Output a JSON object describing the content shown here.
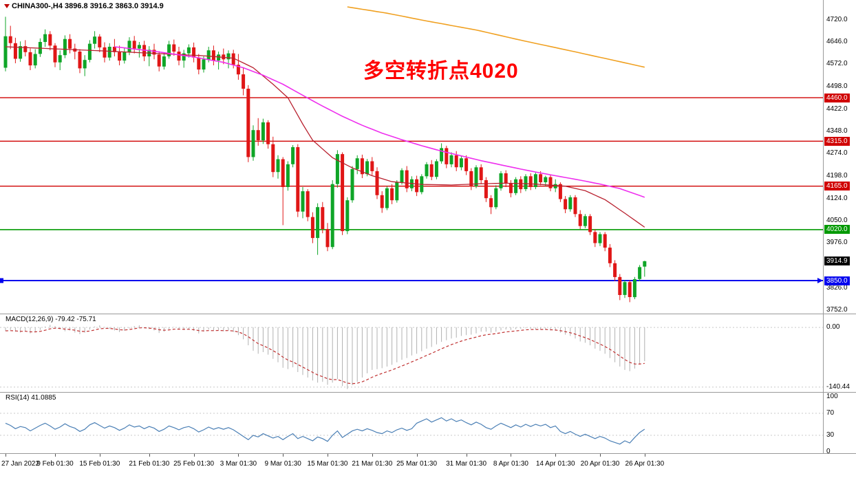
{
  "header": {
    "symbol": "CHINA300-,H4",
    "ohlc": "3896.8 3916.2 3863.0 3914.9"
  },
  "annotation": {
    "text": "多空转折点4020"
  },
  "colors": {
    "up": "#0fa527",
    "down": "#e01616",
    "ma_fast": "#b8202e",
    "ma_slow": "#ee2fee",
    "ma_long": "#f0a020",
    "macd_hist": "#b0b0b0",
    "macd_signal": "#c03030",
    "rsi_line": "#4a7fb5",
    "annotation": "#ff0000",
    "badge_current_bg": "#000000"
  },
  "chart_data": {
    "type": "candlestick",
    "symbol": "CHINA300-",
    "timeframe": "H4",
    "last_bar": {
      "open": 3896.8,
      "high": 3916.2,
      "low": 3863.0,
      "close": 3914.9
    },
    "current_price": 3914.9,
    "current_price_label": "3914.9",
    "ylim": [
      3740,
      4786
    ],
    "y_ticks": [
      {
        "v": 4720,
        "t": "4720.0"
      },
      {
        "v": 4646,
        "t": "4646.0"
      },
      {
        "v": 4572,
        "t": "4572.0"
      },
      {
        "v": 4498,
        "t": "4498.0"
      },
      {
        "v": 4422,
        "t": "4422.0"
      },
      {
        "v": 4348,
        "t": "4348.0"
      },
      {
        "v": 4274,
        "t": "4274.0"
      },
      {
        "v": 4198,
        "t": "4198.0"
      },
      {
        "v": 4124,
        "t": "4124.0"
      },
      {
        "v": 4050,
        "t": "4050.0"
      },
      {
        "v": 3976,
        "t": "3976.0"
      },
      {
        "v": 3826,
        "t": "3826.0"
      },
      {
        "v": 3752,
        "t": "3752.0"
      }
    ],
    "hlines": [
      {
        "value": 4460.0,
        "label": "4460.0",
        "color": "#d00000",
        "width": 1.4
      },
      {
        "value": 4315.0,
        "label": "4315.0",
        "color": "#d00000",
        "width": 1.4
      },
      {
        "value": 4165.0,
        "label": "4165.0",
        "color": "#d00000",
        "width": 1.4
      },
      {
        "value": 4020.0,
        "label": "4020.0",
        "color": "#009900",
        "width": 1.6
      },
      {
        "value": 3850.0,
        "label": "3850.0",
        "color": "#0000ee",
        "width": 2
      }
    ],
    "x_labels": [
      {
        "index": 0,
        "text": "27 Jan 2022"
      },
      {
        "index": 10,
        "text": "9 Feb 01:30"
      },
      {
        "index": 19,
        "text": "15 Feb 01:30"
      },
      {
        "index": 29,
        "text": "21 Feb 01:30"
      },
      {
        "index": 38,
        "text": "25 Feb 01:30"
      },
      {
        "index": 47,
        "text": "3 Mar 01:30"
      },
      {
        "index": 56,
        "text": "9 Mar 01:30"
      },
      {
        "index": 65,
        "text": "15 Mar 01:30"
      },
      {
        "index": 74,
        "text": "21 Mar 01:30"
      },
      {
        "index": 83,
        "text": "25 Mar 01:30"
      },
      {
        "index": 93,
        "text": "31 Mar 01:30"
      },
      {
        "index": 102,
        "text": "8 Apr 01:30"
      },
      {
        "index": 111,
        "text": "14 Apr 01:30"
      },
      {
        "index": 120,
        "text": "20 Apr 01:30"
      },
      {
        "index": 129,
        "text": "26 Apr 01:30"
      }
    ],
    "candles": [
      [
        4560,
        4730,
        4548,
        4665
      ],
      [
        4665,
        4700,
        4622,
        4642
      ],
      [
        4642,
        4660,
        4575,
        4590
      ],
      [
        4590,
        4648,
        4580,
        4632
      ],
      [
        4632,
        4652,
        4598,
        4612
      ],
      [
        4612,
        4625,
        4552,
        4568
      ],
      [
        4568,
        4622,
        4558,
        4606
      ],
      [
        4606,
        4658,
        4596,
        4646
      ],
      [
        4646,
        4688,
        4630,
        4672
      ],
      [
        4672,
        4682,
        4618,
        4634
      ],
      [
        4634,
        4642,
        4562,
        4578
      ],
      [
        4578,
        4618,
        4552,
        4602
      ],
      [
        4602,
        4668,
        4592,
        4656
      ],
      [
        4656,
        4672,
        4608,
        4624
      ],
      [
        4624,
        4640,
        4588,
        4614
      ],
      [
        4614,
        4622,
        4542,
        4558
      ],
      [
        4558,
        4602,
        4532,
        4586
      ],
      [
        4586,
        4652,
        4578,
        4640
      ],
      [
        4640,
        4682,
        4624,
        4664
      ],
      [
        4664,
        4672,
        4612,
        4628
      ],
      [
        4628,
        4645,
        4578,
        4594
      ],
      [
        4594,
        4642,
        4584,
        4630
      ],
      [
        4630,
        4656,
        4598,
        4612
      ],
      [
        4612,
        4634,
        4568,
        4584
      ],
      [
        4584,
        4626,
        4574,
        4612
      ],
      [
        4612,
        4662,
        4602,
        4650
      ],
      [
        4650,
        4666,
        4608,
        4624
      ],
      [
        4624,
        4646,
        4594,
        4636
      ],
      [
        4636,
        4650,
        4582,
        4598
      ],
      [
        4598,
        4632,
        4565,
        4620
      ],
      [
        4620,
        4640,
        4588,
        4604
      ],
      [
        4604,
        4615,
        4548,
        4564
      ],
      [
        4564,
        4610,
        4554,
        4598
      ],
      [
        4598,
        4650,
        4590,
        4638
      ],
      [
        4638,
        4654,
        4600,
        4614
      ],
      [
        4614,
        4630,
        4568,
        4584
      ],
      [
        4584,
        4620,
        4560,
        4608
      ],
      [
        4608,
        4638,
        4594,
        4628
      ],
      [
        4628,
        4644,
        4578,
        4594
      ],
      [
        4594,
        4606,
        4538,
        4554
      ],
      [
        4554,
        4598,
        4544,
        4588
      ],
      [
        4588,
        4630,
        4578,
        4618
      ],
      [
        4618,
        4634,
        4568,
        4584
      ],
      [
        4584,
        4614,
        4554,
        4604
      ],
      [
        4604,
        4624,
        4572,
        4588
      ],
      [
        4588,
        4618,
        4558,
        4608
      ],
      [
        4608,
        4620,
        4558,
        4570
      ],
      [
        4570,
        4606,
        4520,
        4538
      ],
      [
        4538,
        4562,
        4468,
        4490
      ],
      [
        4490,
        4502,
        4245,
        4262
      ],
      [
        4262,
        4368,
        4250,
        4352
      ],
      [
        4352,
        4392,
        4300,
        4318
      ],
      [
        4318,
        4390,
        4306,
        4378
      ],
      [
        4378,
        4385,
        4290,
        4305
      ],
      [
        4305,
        4330,
        4195,
        4212
      ],
      [
        4212,
        4268,
        4190,
        4255
      ],
      [
        4255,
        4262,
        4035,
        4162
      ],
      [
        4162,
        4248,
        4150,
        4238
      ],
      [
        4238,
        4302,
        4228,
        4295
      ],
      [
        4295,
        4305,
        4062,
        4080
      ],
      [
        4080,
        4162,
        4058,
        4148
      ],
      [
        4148,
        4155,
        4048,
        4062
      ],
      [
        4062,
        4078,
        3975,
        3992
      ],
      [
        3992,
        4108,
        3936,
        4095
      ],
      [
        4095,
        4112,
        4008,
        4022
      ],
      [
        4022,
        4042,
        3948,
        3962
      ],
      [
        3962,
        4185,
        3955,
        4172
      ],
      [
        4172,
        4285,
        4160,
        4272
      ],
      [
        4272,
        4278,
        4002,
        4015
      ],
      [
        4015,
        4128,
        4005,
        4118
      ],
      [
        4118,
        4232,
        4110,
        4222
      ],
      [
        4222,
        4268,
        4205,
        4258
      ],
      [
        4258,
        4270,
        4192,
        4205
      ],
      [
        4205,
        4256,
        4198,
        4248
      ],
      [
        4248,
        4262,
        4202,
        4215
      ],
      [
        4215,
        4228,
        4122,
        4135
      ],
      [
        4135,
        4148,
        4076,
        4092
      ],
      [
        4092,
        4165,
        4085,
        4158
      ],
      [
        4158,
        4172,
        4105,
        4118
      ],
      [
        4118,
        4185,
        4110,
        4178
      ],
      [
        4178,
        4225,
        4170,
        4218
      ],
      [
        4218,
        4232,
        4145,
        4158
      ],
      [
        4158,
        4198,
        4148,
        4188
      ],
      [
        4188,
        4200,
        4132,
        4145
      ],
      [
        4145,
        4205,
        4138,
        4198
      ],
      [
        4198,
        4245,
        4190,
        4238
      ],
      [
        4238,
        4252,
        4185,
        4196
      ],
      [
        4196,
        4255,
        4188,
        4248
      ],
      [
        4248,
        4308,
        4240,
        4292
      ],
      [
        4292,
        4300,
        4225,
        4238
      ],
      [
        4238,
        4278,
        4228,
        4268
      ],
      [
        4268,
        4282,
        4215,
        4228
      ],
      [
        4228,
        4265,
        4218,
        4258
      ],
      [
        4258,
        4268,
        4202,
        4215
      ],
      [
        4215,
        4225,
        4152,
        4165
      ],
      [
        4165,
        4235,
        4158,
        4228
      ],
      [
        4228,
        4238,
        4172,
        4185
      ],
      [
        4185,
        4195,
        4112,
        4125
      ],
      [
        4125,
        4135,
        4072,
        4095
      ],
      [
        4095,
        4168,
        4088,
        4158
      ],
      [
        4158,
        4215,
        4150,
        4208
      ],
      [
        4208,
        4218,
        4162,
        4175
      ],
      [
        4175,
        4185,
        4128,
        4142
      ],
      [
        4142,
        4195,
        4135,
        4188
      ],
      [
        4188,
        4198,
        4142,
        4155
      ],
      [
        4155,
        4205,
        4148,
        4198
      ],
      [
        4198,
        4208,
        4152,
        4162
      ],
      [
        4162,
        4210,
        4155,
        4205
      ],
      [
        4205,
        4215,
        4168,
        4178
      ],
      [
        4178,
        4200,
        4165,
        4195
      ],
      [
        4195,
        4202,
        4148,
        4158
      ],
      [
        4158,
        4188,
        4145,
        4172
      ],
      [
        4172,
        4178,
        4112,
        4122
      ],
      [
        4122,
        4132,
        4075,
        4088
      ],
      [
        4088,
        4135,
        4080,
        4128
      ],
      [
        4128,
        4135,
        4062,
        4072
      ],
      [
        4072,
        4085,
        4022,
        4032
      ],
      [
        4032,
        4072,
        4025,
        4065
      ],
      [
        4065,
        4072,
        4002,
        4012
      ],
      [
        4012,
        4022,
        3962,
        3975
      ],
      [
        3975,
        4012,
        3965,
        4005
      ],
      [
        4005,
        4012,
        3948,
        3960
      ],
      [
        3960,
        3972,
        3895,
        3908
      ],
      [
        3908,
        3918,
        3848,
        3862
      ],
      [
        3862,
        3872,
        3785,
        3802
      ],
      [
        3802,
        3852,
        3792,
        3845
      ],
      [
        3845,
        3852,
        3778,
        3795
      ],
      [
        3795,
        3862,
        3788,
        3855
      ],
      [
        3855,
        3902,
        3848,
        3895
      ],
      [
        3896.8,
        3916.2,
        3863.0,
        3914.9
      ]
    ],
    "ma_fast_anchors": [
      [
        0,
        4630
      ],
      [
        20,
        4616
      ],
      [
        40,
        4600
      ],
      [
        46,
        4592
      ],
      [
        50,
        4560
      ],
      [
        54,
        4505
      ],
      [
        57,
        4460
      ],
      [
        60,
        4372
      ],
      [
        62,
        4318
      ],
      [
        66,
        4260
      ],
      [
        70,
        4226
      ],
      [
        74,
        4200
      ],
      [
        78,
        4180
      ],
      [
        84,
        4171
      ],
      [
        90,
        4169
      ],
      [
        96,
        4173
      ],
      [
        101,
        4175
      ],
      [
        107,
        4172
      ],
      [
        113,
        4165
      ],
      [
        117,
        4150
      ],
      [
        121,
        4120
      ],
      [
        125,
        4075
      ],
      [
        129,
        4028
      ]
    ],
    "ma_slow_anchors": [
      [
        22,
        4630
      ],
      [
        30,
        4615
      ],
      [
        38,
        4596
      ],
      [
        44,
        4578
      ],
      [
        48,
        4560
      ],
      [
        52,
        4535
      ],
      [
        56,
        4505
      ],
      [
        60,
        4468
      ],
      [
        64,
        4432
      ],
      [
        68,
        4398
      ],
      [
        72,
        4368
      ],
      [
        76,
        4342
      ],
      [
        80,
        4320
      ],
      [
        84,
        4300
      ],
      [
        88,
        4282
      ],
      [
        92,
        4266
      ],
      [
        96,
        4250
      ],
      [
        100,
        4236
      ],
      [
        104,
        4222
      ],
      [
        108,
        4209
      ],
      [
        112,
        4197
      ],
      [
        116,
        4185
      ],
      [
        120,
        4172
      ],
      [
        124,
        4157
      ],
      [
        129,
        4128
      ]
    ],
    "ma_long_anchors": [
      [
        69,
        4763
      ],
      [
        77,
        4742
      ],
      [
        85,
        4716
      ],
      [
        95,
        4686
      ],
      [
        104,
        4652
      ],
      [
        115,
        4613
      ],
      [
        129,
        4562
      ]
    ],
    "indicators": {
      "macd": {
        "label": "MACD(12,26,9) -79.42 -75.71",
        "value": -79.42,
        "signal": -75.71,
        "ylim": [
          -152,
          31
        ],
        "levels": [
          {
            "value": 0,
            "text": "0.00"
          },
          {
            "value": -140.44,
            "text": "-140.44"
          }
        ],
        "histogram": [
          -8,
          -6,
          -10,
          -12,
          -9,
          -14,
          -11,
          -6,
          2,
          6,
          3,
          -4,
          -9,
          -7,
          -12,
          -16,
          -12,
          -5,
          2,
          5,
          1,
          -3,
          -7,
          -11,
          -8,
          -2,
          3,
          5,
          0,
          -4,
          -7,
          -13,
          -10,
          -4,
          1,
          -3,
          -6,
          -4,
          -8,
          -14,
          -10,
          -5,
          -8,
          -6,
          -9,
          -7,
          -11,
          -18,
          -28,
          -42,
          -55,
          -62,
          -58,
          -64,
          -74,
          -82,
          -95,
          -98,
          -94,
          -105,
          -112,
          -118,
          -125,
          -130,
          -128,
          -135,
          -130,
          -122,
          -138,
          -145,
          -136,
          -128,
          -118,
          -108,
          -100,
          -98,
          -96,
          -92,
          -88,
          -82,
          -76,
          -72,
          -66,
          -62,
          -56,
          -50,
          -46,
          -40,
          -34,
          -30,
          -26,
          -24,
          -20,
          -18,
          -17,
          -14,
          -10,
          -10,
          -12,
          -10,
          -7,
          -5,
          -6,
          -4,
          -3,
          -2,
          -3,
          -4,
          -5,
          -5,
          -7,
          -8,
          -12,
          -17,
          -20,
          -26,
          -33,
          -36,
          -42,
          -50,
          -55,
          -62,
          -72,
          -82,
          -92,
          -100,
          -103,
          -97,
          -87,
          -79.4
        ]
      },
      "rsi": {
        "label": "RSI(14) 41.0885",
        "value": 41.0885,
        "ylim": [
          -1.25,
          107.5
        ],
        "levels": [
          {
            "value": 100,
            "text": "100"
          },
          {
            "value": 70,
            "text": "70"
          },
          {
            "value": 30,
            "text": "30"
          },
          {
            "value": 0,
            "text": "0"
          }
        ],
        "values": [
          52,
          48,
          42,
          46,
          44,
          38,
          43,
          48,
          52,
          47,
          41,
          45,
          51,
          46,
          43,
          37,
          41,
          49,
          53,
          48,
          43,
          47,
          44,
          39,
          43,
          49,
          45,
          47,
          42,
          46,
          43,
          37,
          41,
          47,
          44,
          40,
          44,
          46,
          42,
          36,
          40,
          45,
          41,
          44,
          41,
          44,
          40,
          34,
          28,
          22,
          30,
          27,
          33,
          29,
          25,
          28,
          22,
          28,
          33,
          24,
          28,
          24,
          20,
          27,
          24,
          19,
          30,
          38,
          26,
          32,
          38,
          41,
          38,
          42,
          39,
          35,
          33,
          38,
          35,
          40,
          43,
          39,
          42,
          52,
          56,
          60,
          54,
          58,
          62,
          56,
          60,
          55,
          58,
          53,
          49,
          54,
          50,
          44,
          41,
          47,
          52,
          48,
          44,
          49,
          45,
          50,
          46,
          50,
          47,
          50,
          44,
          47,
          37,
          33,
          37,
          32,
          28,
          32,
          28,
          24,
          28,
          25,
          20,
          17,
          14,
          20,
          16,
          26,
          35,
          41.1
        ]
      }
    }
  }
}
